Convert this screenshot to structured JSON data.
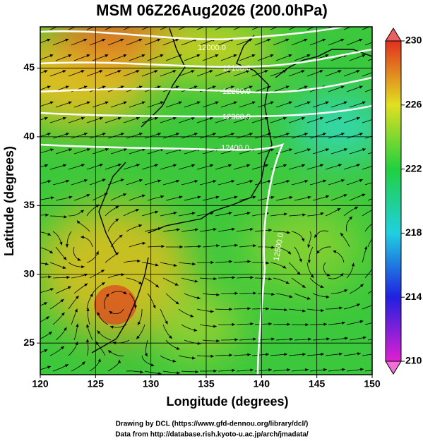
{
  "title": "MSM 06Z26Aug2026 (200.0hPa)",
  "x_axis": {
    "label": "Longitude (degrees)",
    "lim": [
      120,
      150
    ],
    "ticks": [
      120,
      125,
      130,
      135,
      140,
      145,
      150
    ]
  },
  "y_axis": {
    "label": "Latitude  (degrees)",
    "lim": [
      22.7,
      48
    ],
    "ticks": [
      25,
      30,
      35,
      40,
      45
    ]
  },
  "colorbar": {
    "lim": [
      210,
      230
    ],
    "ticks": [
      210,
      214,
      218,
      222,
      226,
      230
    ]
  },
  "contour_labels": [
    "12000.0",
    "12100.0",
    "12200.0",
    "12300.0",
    "12400.0",
    "12500.0"
  ],
  "footer": [
    "Drawing by DCL (https://www.gfd-dennou.org/library/dcl/)",
    "Data from http://database.rish.kyoto-u.ac.jp/arch/jmadata/"
  ]
}
